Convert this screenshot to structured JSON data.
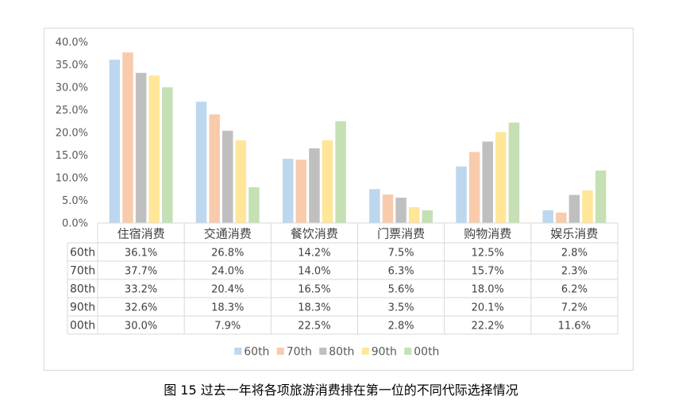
{
  "caption": "图 15 过去一年将各项旅游消费排在第一位的不同代际选择情况",
  "chart_data": {
    "type": "bar",
    "categories": [
      "住宿消费",
      "交通消费",
      "餐饮消费",
      "门票消费",
      "购物消费",
      "娱乐消费"
    ],
    "series": [
      {
        "name": "60th",
        "color": "#bdd7ee",
        "values": [
          36.1,
          26.8,
          14.2,
          7.5,
          12.5,
          2.8
        ],
        "labels": [
          "36.1%",
          "26.8%",
          "14.2%",
          "7.5%",
          "12.5%",
          "2.8%"
        ]
      },
      {
        "name": "70th",
        "color": "#f8cbad",
        "values": [
          37.7,
          24.0,
          14.0,
          6.3,
          15.7,
          2.3
        ],
        "labels": [
          "37.7%",
          "24.0%",
          "14.0%",
          "6.3%",
          "15.7%",
          "2.3%"
        ]
      },
      {
        "name": "80th",
        "color": "#bfbfbf",
        "values": [
          33.2,
          20.4,
          16.5,
          5.6,
          18.0,
          6.2
        ],
        "labels": [
          "33.2%",
          "20.4%",
          "16.5%",
          "5.6%",
          "18.0%",
          "6.2%"
        ]
      },
      {
        "name": "90th",
        "color": "#ffe699",
        "values": [
          32.6,
          18.3,
          18.3,
          3.5,
          20.1,
          7.2
        ],
        "labels": [
          "32.6%",
          "18.3%",
          "18.3%",
          "3.5%",
          "20.1%",
          "7.2%"
        ]
      },
      {
        "name": "00th",
        "color": "#c5e0b4",
        "values": [
          30.0,
          7.9,
          22.5,
          2.8,
          22.2,
          11.6
        ],
        "labels": [
          "30.0%",
          "7.9%",
          "22.5%",
          "2.8%",
          "22.2%",
          "11.6%"
        ]
      }
    ],
    "yticks": [
      "0.0%",
      "5.0%",
      "10.0%",
      "15.0%",
      "20.0%",
      "25.0%",
      "30.0%",
      "35.0%",
      "40.0%"
    ],
    "ylim": [
      0,
      40
    ],
    "grid": false,
    "legend": "bottom",
    "data_table": true
  }
}
